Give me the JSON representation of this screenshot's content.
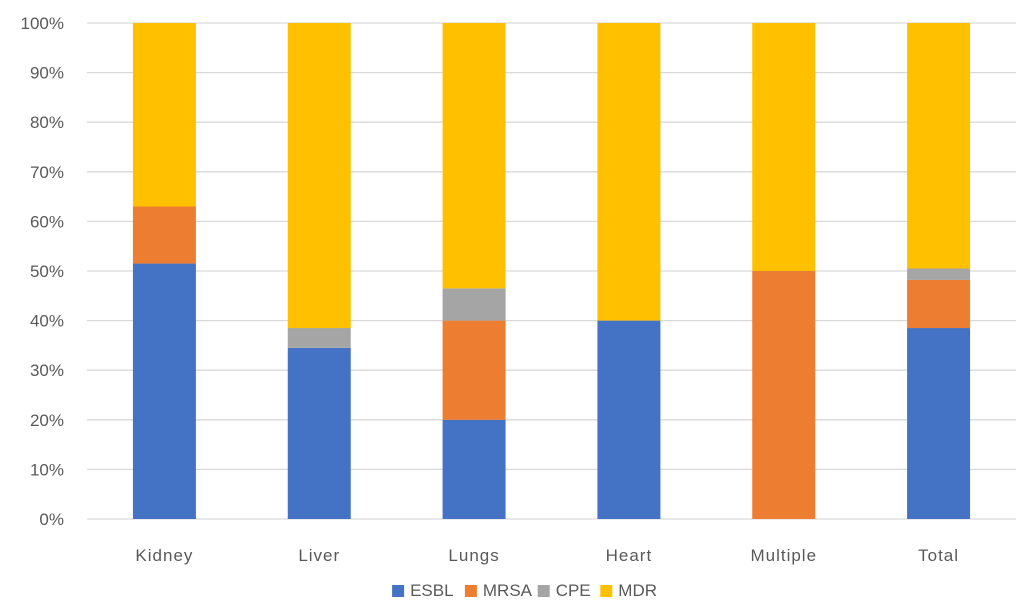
{
  "chart_data": {
    "type": "bar",
    "stacked": true,
    "normalized": true,
    "title": "",
    "xlabel": "",
    "ylabel": "",
    "ylim": [
      0,
      100
    ],
    "y_tick_step": 10,
    "y_tick_format": "percent",
    "grid": true,
    "legend_position": "bottom",
    "categories": [
      "Kidney",
      "Liver",
      "Lungs",
      "Heart",
      "Multiple",
      "Total"
    ],
    "series": [
      {
        "name": "ESBL",
        "color": "#4472C4",
        "values": [
          51.5,
          34.5,
          20,
          40,
          0,
          38.5
        ]
      },
      {
        "name": "MRSA",
        "color": "#ED7D31",
        "values": [
          11.5,
          0,
          20,
          0,
          50,
          9.7
        ]
      },
      {
        "name": "CPE",
        "color": "#A5A5A5",
        "values": [
          0,
          4,
          6.5,
          0,
          0,
          2.3
        ]
      },
      {
        "name": "MDR",
        "color": "#FFC000",
        "values": [
          37,
          61.5,
          53.5,
          60,
          50,
          49.5
        ]
      }
    ]
  }
}
